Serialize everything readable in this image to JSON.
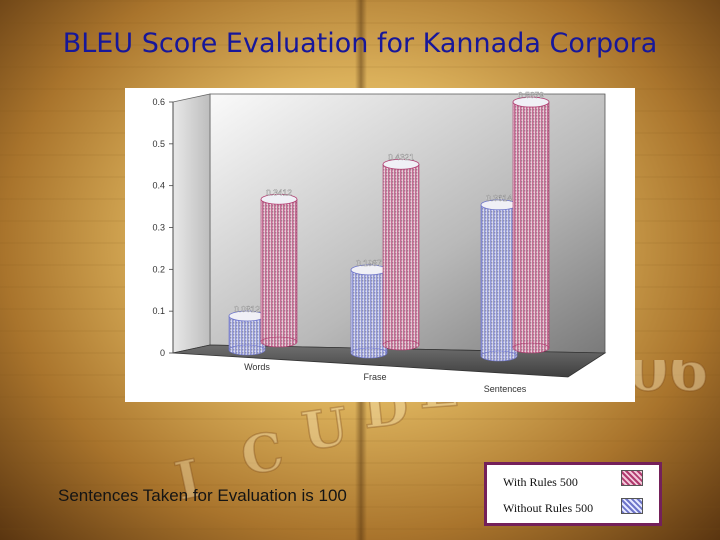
{
  "title": "BLEU Score Evaluation for Kannada Corpora",
  "caption": "Sentences Taken for Evaluation is  100",
  "watermark": {
    "letters": [
      "I",
      "C",
      "U",
      "D",
      "E"
    ],
    "year": "06"
  },
  "legend": [
    {
      "label": "With Rules 500",
      "color": "#b03a6e"
    },
    {
      "label": "Without Rules 500",
      "color": "#6d74c9"
    }
  ],
  "chart_data": {
    "type": "bar",
    "categories": [
      "Words",
      "Frase",
      "Sentences"
    ],
    "series": [
      {
        "name": "Without Rules 500",
        "values": [
          0.0812,
          0.1987,
          0.3614
        ],
        "labels": [
          "0.0812",
          "0.1987",
          "0.3614"
        ],
        "color": "#6d74c9"
      },
      {
        "name": "With Rules 500",
        "values": [
          0.3412,
          0.4321,
          0.5879
        ],
        "labels": [
          "0.3412",
          "0.4321",
          "0.5879"
        ],
        "color": "#b03a6e"
      }
    ],
    "yticks": [
      "0",
      "0.1",
      "0.2",
      "0.3",
      "0.4",
      "0.5",
      "0.6"
    ],
    "ylim": [
      0,
      0.6
    ],
    "grid": false,
    "three_d": true
  }
}
